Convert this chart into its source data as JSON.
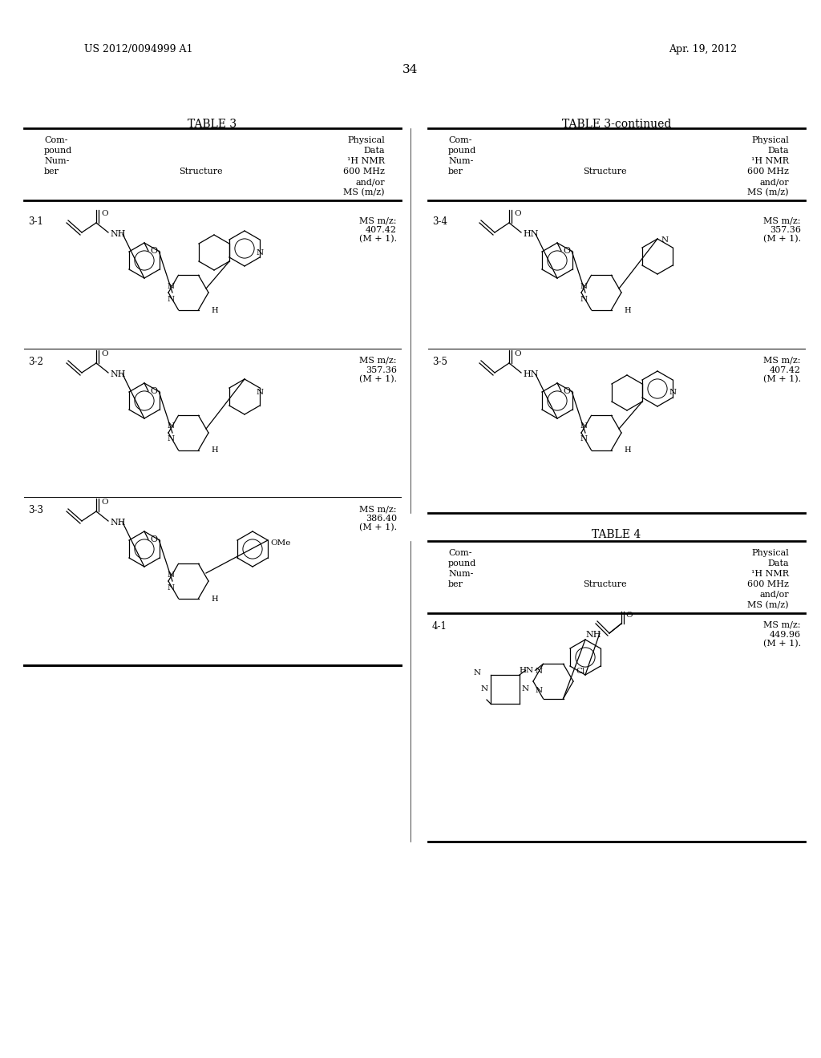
{
  "background_color": "#ffffff",
  "header_left": "US 2012/0094999 A1",
  "header_right": "Apr. 19, 2012",
  "page_number": "34",
  "table_left_title": "TABLE 3",
  "table_right_title": "TABLE 3-continued",
  "table4_title": "TABLE 4",
  "col_headers": [
    "Com-\npound\nNum-\nber",
    "Structure",
    "Physical\nData\n¹H NMR\n600 MHz\nand/or\nMS (m/z)"
  ],
  "compounds": [
    {
      "id": "3-1",
      "ms": "MS m/z:\n407.42\n(M + 1).",
      "side": "left",
      "row": 0
    },
    {
      "id": "3-2",
      "ms": "MS m/z:\n357.36\n(M + 1).",
      "side": "left",
      "row": 1
    },
    {
      "id": "3-3",
      "ms": "MS m/z:\n386.40\n(M + 1).",
      "side": "left",
      "row": 2
    },
    {
      "id": "3-4",
      "ms": "MS m/z:\n357.36\n(M + 1).",
      "side": "right",
      "row": 0
    },
    {
      "id": "3-5",
      "ms": "MS m/z:\n407.42\n(M + 1).",
      "side": "right",
      "row": 1
    },
    {
      "id": "4-1",
      "ms": "MS m/z:\n449.96\n(M + 1).",
      "side": "right",
      "row": 2
    }
  ]
}
